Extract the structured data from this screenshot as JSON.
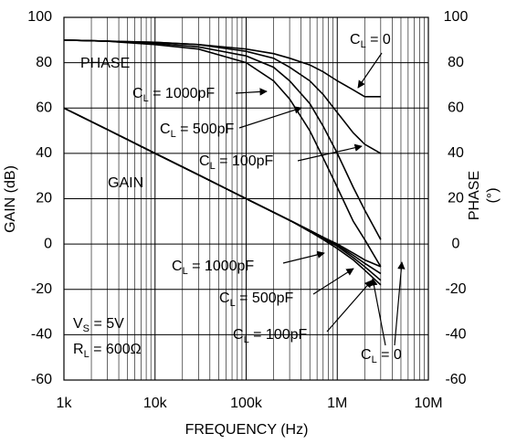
{
  "chart_data": {
    "type": "line",
    "xlabel": "FREQUENCY (Hz)",
    "ylabel": "GAIN (dB)",
    "y2label": [
      "PHASE",
      "(°)"
    ],
    "log_x": true,
    "grid": true,
    "color": "#000000",
    "xlim": [
      1000,
      10000000
    ],
    "xticks": [
      {
        "value": 1000,
        "label": "1k"
      },
      {
        "value": 10000,
        "label": "10k"
      },
      {
        "value": 100000,
        "label": "100k"
      },
      {
        "value": 1000000,
        "label": "1M"
      },
      {
        "value": 10000000,
        "label": "10M"
      }
    ],
    "ylim": [
      -60,
      100
    ],
    "yticks": [
      -60,
      -40,
      -20,
      0,
      20,
      40,
      60,
      80,
      100
    ],
    "y2lim": [
      -60,
      100
    ],
    "y2ticks": [
      -60,
      -40,
      -20,
      0,
      20,
      40,
      60,
      80,
      100
    ],
    "x": [
      1000,
      3000,
      10000,
      30000,
      100000,
      200000,
      300000,
      500000,
      700000,
      1000000,
      1500000,
      2000000,
      3000000
    ],
    "series": [
      {
        "name": "GAIN C_L = 0",
        "color": "#000000",
        "values": [
          60,
          50.5,
          40,
          30.5,
          20,
          14,
          10.5,
          6,
          3,
          0,
          -4,
          -7,
          -10
        ]
      },
      {
        "name": "GAIN C_L = 100pF",
        "color": "#000000",
        "values": [
          60,
          50.5,
          40,
          30.5,
          20,
          14,
          10.5,
          6,
          3,
          -0.5,
          -5,
          -8.5,
          -13
        ]
      },
      {
        "name": "GAIN C_L = 500pF",
        "color": "#000000",
        "values": [
          60,
          50.5,
          40,
          30.5,
          20,
          14,
          10.5,
          6,
          2.5,
          -1,
          -6,
          -10,
          -16
        ]
      },
      {
        "name": "GAIN C_L = 1000pF",
        "color": "#000000",
        "values": [
          60,
          50.5,
          40,
          30.5,
          20,
          14,
          10.5,
          5.5,
          2,
          -2,
          -7,
          -11.5,
          -18
        ]
      },
      {
        "name": "PHASE C_L = 0",
        "color": "#000000",
        "axis": "y2",
        "values": [
          90,
          89.5,
          89,
          88,
          86,
          84,
          82,
          79,
          76,
          72,
          68,
          65,
          65
        ]
      },
      {
        "name": "PHASE C_L = 100pF",
        "color": "#000000",
        "axis": "y2",
        "values": [
          90,
          89.5,
          89,
          88,
          85,
          82,
          78,
          72,
          66,
          58,
          49,
          44,
          40
        ]
      },
      {
        "name": "PHASE C_L = 500pF",
        "color": "#000000",
        "axis": "y2",
        "values": [
          90,
          89.5,
          88.5,
          87,
          83,
          78,
          72,
          62,
          52,
          40,
          25,
          15,
          2
        ]
      },
      {
        "name": "PHASE C_L = 1000pF",
        "color": "#000000",
        "axis": "y2",
        "values": [
          90,
          89.5,
          88,
          86,
          80,
          72,
          64,
          50,
          38,
          25,
          10,
          2,
          -10
        ]
      }
    ],
    "annotations": [
      {
        "text": "PHASE"
      },
      {
        "text": "GAIN"
      },
      {
        "text": "C",
        "sub": "L",
        "rest": " = 0"
      },
      {
        "text": "C",
        "sub": "L",
        "rest": " = 1000pF"
      },
      {
        "text": "C",
        "sub": "L",
        "rest": " = 500pF"
      },
      {
        "text": "C",
        "sub": "L",
        "rest": " = 100pF"
      },
      {
        "text": "C",
        "sub": "L",
        "rest": " = 1000pF"
      },
      {
        "text": "C",
        "sub": "L",
        "rest": " = 500pF"
      },
      {
        "text": "C",
        "sub": "L",
        "rest": " = 100pF"
      },
      {
        "text": "C",
        "sub": "L",
        "rest": " = 0"
      },
      {
        "text": "V",
        "sub": "S",
        "rest": " = 5V"
      },
      {
        "text": "R",
        "sub": "L",
        "rest": " = 600Ω"
      }
    ]
  }
}
